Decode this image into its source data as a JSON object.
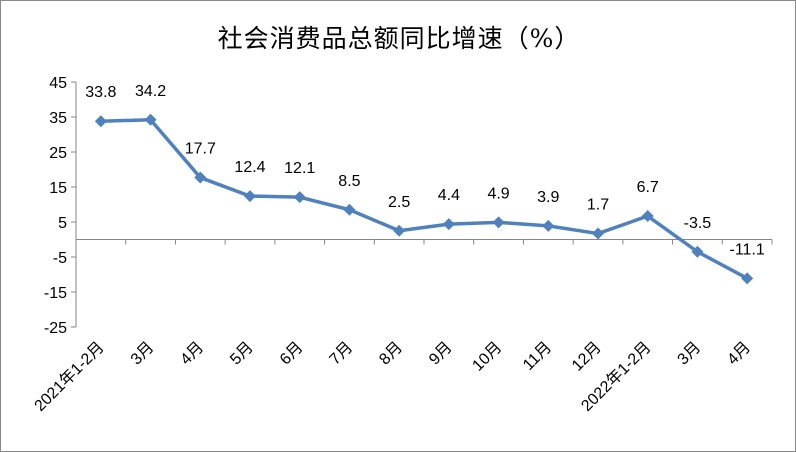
{
  "chart_data": {
    "type": "line",
    "title": "社会消费品总额同比增速（%）",
    "categories": [
      "2021年1-2月",
      "3月",
      "4月",
      "5月",
      "6月",
      "7月",
      "8月",
      "9月",
      "10月",
      "11月",
      "12月",
      "2022年1-2月",
      "3月",
      "4月"
    ],
    "series": [
      {
        "values": [
          33.8,
          34.2,
          17.7,
          12.4,
          12.1,
          8.5,
          2.5,
          4.4,
          4.9,
          3.9,
          1.7,
          6.7,
          -3.5,
          -11.1
        ]
      }
    ],
    "data_labels": [
      "33.8",
      "34.2",
      "17.7",
      "12.4",
      "12.1",
      "8.5",
      "2.5",
      "4.4",
      "4.9",
      "3.9",
      "1.7",
      "6.7",
      "-3.5",
      "-11.1"
    ],
    "yticks": [
      45,
      35,
      25,
      15,
      5,
      -5,
      -15,
      -25
    ],
    "ylim": [
      -25,
      45
    ],
    "grid": false,
    "legend": "none",
    "line_color": "#4F81BD",
    "marker": "diamond"
  }
}
